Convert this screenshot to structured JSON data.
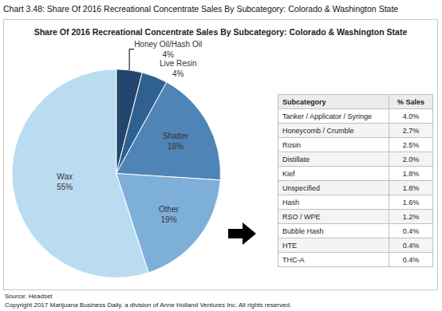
{
  "heading": "Chart 3.48: Share Of 2016 Recreational Concentrate Sales By Subcategory: Colorado & Washington State",
  "chart_data": {
    "type": "pie",
    "title": "Share Of 2016 Recreational Concentrate Sales By Subcategory: Colorado & Washington State",
    "categories": [
      "Honey Oil/Hash Oil",
      "Live Resin",
      "Shatter",
      "Other",
      "Wax"
    ],
    "values": [
      4,
      4,
      18,
      19,
      55
    ],
    "value_labels": [
      "4%",
      "4%",
      "18%",
      "19%",
      "55%"
    ],
    "colors": [
      "#22466d",
      "#2f6090",
      "#4f84b6",
      "#7eafd9",
      "#badcf1"
    ],
    "data_labels": true
  },
  "table": {
    "header": [
      "Subcategory",
      "% Sales"
    ],
    "rows": [
      [
        "Tanker / Applicator / Syringe",
        "4.0%"
      ],
      [
        "Honeycomb / Crumble",
        "2.7%"
      ],
      [
        "Rosin",
        "2.5%"
      ],
      [
        "Distillate",
        "2.0%"
      ],
      [
        "Kief",
        "1.8%"
      ],
      [
        "Unspecified",
        "1.8%"
      ],
      [
        "Hash",
        "1.6%"
      ],
      [
        "RSO / WPE",
        "1.2%"
      ],
      [
        "Bubble Hash",
        "0.4%"
      ],
      [
        "HTE",
        "0.4%"
      ],
      [
        "THC-A",
        "0.4%"
      ]
    ]
  },
  "source": "Source: Headset",
  "copyright": "Copyright 2017 Marijuana Business Daily, a division of Anne Holland Ventures Inc. All rights reserved."
}
